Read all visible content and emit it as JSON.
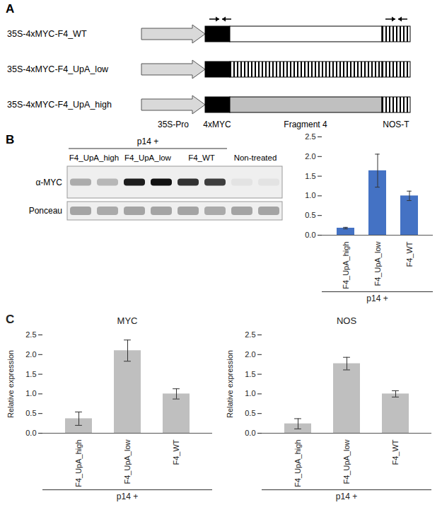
{
  "panel_labels": [
    "A",
    "B",
    "C"
  ],
  "construct_diagram": {
    "constructs": [
      "35S-4xMYC-F4_WT",
      "35S-4xMYC-F4_UpA_low",
      "35S-4xMYC-F4_UpA_high"
    ],
    "elements": [
      "35S-Pro",
      "4xMYC",
      "Fragment 4",
      "NOS-T"
    ]
  },
  "blot": {
    "header": "p14 +",
    "header_groups": 3,
    "groups": [
      {
        "label": "F4_UpA_high",
        "lanes": 2
      },
      {
        "label": "F4_UpA_low",
        "lanes": 2
      },
      {
        "label": "F4_WT",
        "lanes": 2
      },
      {
        "label": "Non-treated",
        "lanes": 2
      }
    ],
    "rows": [
      {
        "label": "α-MYC",
        "signal": [
          0.3,
          0.25,
          0.95,
          1.0,
          0.85,
          0.8,
          0.05,
          0.05
        ]
      },
      {
        "label": "Ponceau",
        "signal": [
          0.55,
          0.5,
          0.55,
          0.55,
          0.55,
          0.5,
          0.55,
          0.55
        ]
      }
    ]
  },
  "chart_data": [
    {
      "type": "bar",
      "categories": [
        "F4_UpA_high",
        "F4_UpA_low",
        "F4_WT"
      ],
      "values": [
        0.18,
        1.64,
        1.0
      ],
      "errors": [
        0.02,
        0.42,
        0.12
      ],
      "color": "#4472c4",
      "ylim": [
        0,
        2.5
      ],
      "yticks": [
        {
          "value": 0,
          "label": "0.0"
        },
        0.5,
        {
          "value": 1,
          "label": "1.0"
        },
        1.5,
        {
          "value": 2,
          "label": "2.0"
        },
        2.5
      ],
      "group_label": "p14 +",
      "grid": false
    },
    {
      "type": "bar",
      "title": "MYC",
      "y_label": "Relative expression",
      "categories": [
        "F4_UpA_high",
        "F4_UpA_low",
        "F4_WT"
      ],
      "values": [
        0.37,
        2.1,
        1.0
      ],
      "errors": [
        0.17,
        0.27,
        0.13
      ],
      "color": "#bfbfbf",
      "ylim": [
        0,
        2.5
      ],
      "yticks": [
        {
          "value": 0,
          "label": "0.0"
        },
        0.5,
        {
          "value": 1,
          "label": "1.0"
        },
        1.5,
        {
          "value": 2,
          "label": "2.0"
        },
        2.5
      ],
      "group_label": "p14 +",
      "grid": false
    },
    {
      "type": "bar",
      "title": "NOS",
      "y_label": "Relative expression",
      "categories": [
        "F4_UpA_high",
        "F4_UpA_low",
        "F4_WT"
      ],
      "values": [
        0.24,
        1.77,
        1.0
      ],
      "errors": [
        0.13,
        0.16,
        0.08
      ],
      "color": "#bfbfbf",
      "ylim": [
        0,
        2.5
      ],
      "yticks": [
        {
          "value": 0,
          "label": "0.0"
        },
        0.5,
        {
          "value": 1,
          "label": "1.0"
        },
        1.5,
        {
          "value": 2,
          "label": "2.0"
        },
        2.5
      ],
      "group_label": "p14 +",
      "grid": false
    }
  ]
}
